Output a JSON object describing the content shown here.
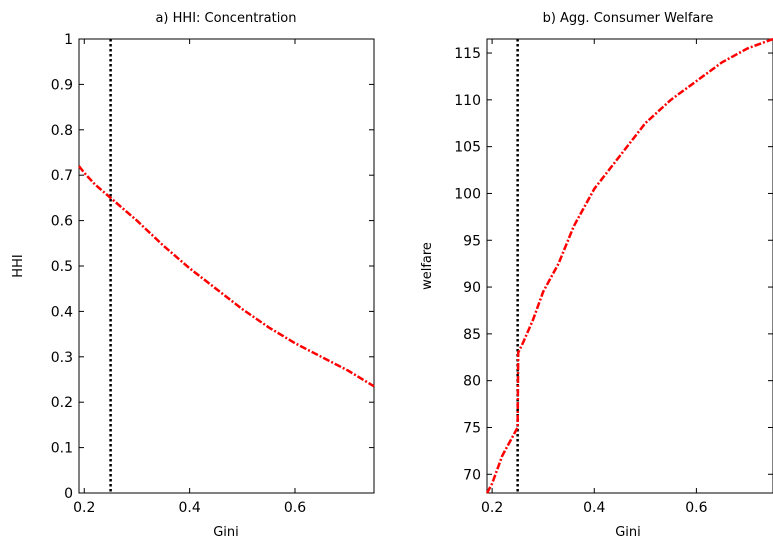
{
  "chart_data": [
    {
      "type": "line",
      "title": "a) HHI: Concentration",
      "xlabel": "Gini",
      "ylabel": "HHI",
      "xlim": [
        0.19,
        0.75
      ],
      "ylim": [
        0,
        1
      ],
      "x_ticks": [
        0.2,
        0.4,
        0.6
      ],
      "x_tick_labels": [
        "0.2",
        "0.4",
        "0.6"
      ],
      "y_ticks": [
        0,
        0.1,
        0.2,
        0.3,
        0.4,
        0.5,
        0.6,
        0.7,
        0.8,
        0.9,
        1
      ],
      "y_tick_labels": [
        "0",
        "0.1",
        "0.2",
        "0.3",
        "0.4",
        "0.5",
        "0.6",
        "0.7",
        "0.8",
        "0.9",
        "1"
      ],
      "vline_x": 0.25,
      "series": [
        {
          "color": "#ff0000",
          "style": "dash-dot",
          "x": [
            0.19,
            0.2,
            0.22,
            0.25,
            0.3,
            0.35,
            0.4,
            0.45,
            0.5,
            0.55,
            0.6,
            0.65,
            0.7,
            0.75
          ],
          "y": [
            0.72,
            0.705,
            0.68,
            0.65,
            0.6,
            0.545,
            0.495,
            0.45,
            0.405,
            0.365,
            0.33,
            0.3,
            0.27,
            0.235
          ]
        }
      ]
    },
    {
      "type": "line",
      "title": "b) Agg. Consumer Welfare",
      "xlabel": "Gini",
      "ylabel": "welfare",
      "xlim": [
        0.19,
        0.75
      ],
      "ylim": [
        68,
        116.5
      ],
      "x_ticks": [
        0.2,
        0.4,
        0.6
      ],
      "x_tick_labels": [
        "0.2",
        "0.4",
        "0.6"
      ],
      "y_ticks": [
        70,
        75,
        80,
        85,
        90,
        95,
        100,
        105,
        110,
        115
      ],
      "y_tick_labels": [
        "70",
        "75",
        "80",
        "85",
        "90",
        "95",
        "100",
        "105",
        "110",
        "115"
      ],
      "vline_x": 0.25,
      "series": [
        {
          "color": "#ff0000",
          "style": "dash-dot",
          "x": [
            0.19,
            0.2,
            0.22,
            0.25,
            0.251,
            0.26,
            0.28,
            0.3,
            0.33,
            0.36,
            0.4,
            0.45,
            0.5,
            0.55,
            0.6,
            0.65,
            0.7,
            0.75
          ],
          "y": [
            68,
            69,
            72,
            75,
            83,
            84,
            86.5,
            89.5,
            92.5,
            96.5,
            100.5,
            104,
            107.5,
            110,
            112,
            114,
            115.5,
            116.5
          ]
        }
      ]
    }
  ]
}
